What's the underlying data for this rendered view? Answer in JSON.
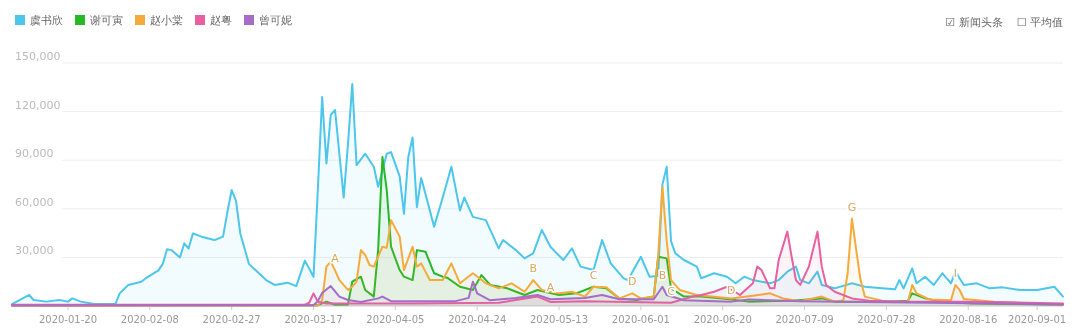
{
  "chart_data": {
    "type": "area",
    "legend": "top left",
    "grid": "y",
    "xlim": [
      "2020-01-07",
      "2020-09-07"
    ],
    "ylim": [
      0,
      150000
    ],
    "xticks": [
      "2020-01-20",
      "2020-02-08",
      "2020-02-27",
      "2020-03-17",
      "2020-04-05",
      "2020-04-24",
      "2020-05-13",
      "2020-06-01",
      "2020-06-20",
      "2020-07-09",
      "2020-07-28",
      "2020-08-16",
      "2020-09-01"
    ],
    "yticks": [
      {
        "value": 30000,
        "label": "30,000"
      },
      {
        "value": 60000,
        "label": "60,000"
      },
      {
        "value": 90000,
        "label": "90,000"
      },
      {
        "value": 120000,
        "label": "120,000"
      },
      {
        "value": 150000,
        "label": "150,000"
      }
    ],
    "series": [
      {
        "name": "虞书欣",
        "color": "#4cc6ea",
        "x": [
          "2020-01-07",
          "2020-01-11",
          "2020-01-12",
          "2020-01-15",
          "2020-01-18",
          "2020-01-20",
          "2020-01-21",
          "2020-01-23",
          "2020-01-26",
          "2020-01-31",
          "2020-02-01",
          "2020-02-03",
          "2020-02-06",
          "2020-02-07",
          "2020-02-10",
          "2020-02-11",
          "2020-02-12",
          "2020-02-13",
          "2020-02-15",
          "2020-02-16",
          "2020-02-17",
          "2020-02-18",
          "2020-02-20",
          "2020-02-23",
          "2020-02-25",
          "2020-02-26",
          "2020-02-27",
          "2020-02-28",
          "2020-02-29",
          "2020-03-02",
          "2020-03-06",
          "2020-03-08",
          "2020-03-11",
          "2020-03-13",
          "2020-03-15",
          "2020-03-17",
          "2020-03-18",
          "2020-03-19",
          "2020-03-20",
          "2020-03-21",
          "2020-03-22",
          "2020-03-24",
          "2020-03-25",
          "2020-03-26",
          "2020-03-27",
          "2020-03-29",
          "2020-03-31",
          "2020-04-01",
          "2020-04-03",
          "2020-04-04",
          "2020-04-06",
          "2020-04-07",
          "2020-04-08",
          "2020-04-09",
          "2020-04-10",
          "2020-04-11",
          "2020-04-14",
          "2020-04-16",
          "2020-04-18",
          "2020-04-20",
          "2020-04-21",
          "2020-04-23",
          "2020-04-26",
          "2020-04-29",
          "2020-04-30",
          "2020-05-03",
          "2020-05-05",
          "2020-05-07",
          "2020-05-09",
          "2020-05-11",
          "2020-05-14",
          "2020-05-16",
          "2020-05-18",
          "2020-05-21",
          "2020-05-23",
          "2020-05-25",
          "2020-05-28",
          "2020-05-29",
          "2020-06-01",
          "2020-06-03",
          "2020-06-05",
          "2020-06-06",
          "2020-06-07",
          "2020-06-08",
          "2020-06-09",
          "2020-06-11",
          "2020-06-14",
          "2020-06-15",
          "2020-06-18",
          "2020-06-21",
          "2020-06-23",
          "2020-06-25",
          "2020-06-27",
          "2020-07-01",
          "2020-07-03",
          "2020-07-05",
          "2020-07-07",
          "2020-07-08",
          "2020-07-10",
          "2020-07-12",
          "2020-07-13",
          "2020-07-16",
          "2020-07-20",
          "2020-07-23",
          "2020-07-27",
          "2020-07-30",
          "2020-07-31",
          "2020-08-01",
          "2020-08-03",
          "2020-08-04",
          "2020-08-06",
          "2020-08-08",
          "2020-08-10",
          "2020-08-12",
          "2020-08-13",
          "2020-08-15",
          "2020-08-18",
          "2020-08-21",
          "2020-08-24",
          "2020-08-28",
          "2020-09-01",
          "2020-09-05",
          "2020-09-07"
        ],
        "values": [
          1200,
          6800,
          3700,
          2700,
          3700,
          2700,
          4700,
          2700,
          1200,
          1200,
          7800,
          13000,
          15000,
          17000,
          22000,
          26000,
          35000,
          34500,
          30000,
          38700,
          35500,
          44800,
          42800,
          40700,
          42800,
          58000,
          71600,
          65000,
          44800,
          26000,
          16000,
          13000,
          14400,
          12300,
          28000,
          18000,
          71600,
          129000,
          88000,
          118000,
          121000,
          67000,
          100000,
          137000,
          87000,
          94000,
          86000,
          73600,
          94000,
          95000,
          80000,
          57000,
          92000,
          104000,
          61000,
          79000,
          49000,
          67000,
          86000,
          59000,
          67000,
          55000,
          53000,
          35600,
          40700,
          34500,
          29400,
          32500,
          46900,
          36600,
          28400,
          35600,
          24300,
          22200,
          40700,
          26300,
          17100,
          16000,
          30400,
          18100,
          18500,
          75000,
          86000,
          40000,
          32500,
          28400,
          24300,
          17100,
          20200,
          18100,
          14000,
          18100,
          16000,
          14000,
          16000,
          21200,
          24300,
          16000,
          14000,
          21200,
          13000,
          10900,
          14000,
          11900,
          10900,
          10300,
          16000,
          10900,
          23200,
          14000,
          18100,
          13000,
          20200,
          14000,
          21200,
          13000,
          14000,
          10900,
          11500,
          9900,
          9900,
          11900,
          5800
        ]
      },
      {
        "name": "谢可寅",
        "color": "#27b827",
        "x": [
          "2020-01-07",
          "2020-03-18",
          "2020-03-20",
          "2020-03-22",
          "2020-03-25",
          "2020-03-26",
          "2020-03-28",
          "2020-03-29",
          "2020-03-31",
          "2020-04-01",
          "2020-04-02",
          "2020-04-03",
          "2020-04-04",
          "2020-04-06",
          "2020-04-07",
          "2020-04-09",
          "2020-04-10",
          "2020-04-12",
          "2020-04-14",
          "2020-04-16",
          "2020-04-17",
          "2020-04-20",
          "2020-04-23",
          "2020-04-25",
          "2020-04-27",
          "2020-05-01",
          "2020-05-05",
          "2020-05-08",
          "2020-05-13",
          "2020-05-17",
          "2020-05-21",
          "2020-05-24",
          "2020-05-27",
          "2020-05-31",
          "2020-06-04",
          "2020-06-05",
          "2020-06-07",
          "2020-06-08",
          "2020-06-11",
          "2020-06-15",
          "2020-06-20",
          "2020-06-26",
          "2020-07-06",
          "2020-07-13",
          "2020-07-16",
          "2020-07-28",
          "2020-08-02",
          "2020-08-03",
          "2020-08-06",
          "2020-08-10",
          "2020-08-17",
          "2020-08-27",
          "2020-09-07"
        ],
        "values": [
          500,
          500,
          2700,
          800,
          1000,
          15000,
          18100,
          9900,
          5800,
          34500,
          92000,
          71600,
          36600,
          22200,
          18100,
          16000,
          34500,
          33500,
          20200,
          18100,
          17500,
          11900,
          9900,
          19100,
          13000,
          10900,
          6800,
          9900,
          6800,
          7800,
          11900,
          10900,
          4700,
          3700,
          5800,
          30400,
          29400,
          10900,
          5800,
          5800,
          4700,
          2700,
          3300,
          4700,
          2700,
          2700,
          3300,
          7800,
          4700,
          2700,
          1600,
          1200,
          700
        ]
      },
      {
        "name": "赵小棠",
        "color": "#f5aa3c",
        "x": [
          "2020-01-07",
          "2020-03-18",
          "2020-03-19",
          "2020-03-20",
          "2020-03-21",
          "2020-03-22",
          "2020-03-23",
          "2020-03-25",
          "2020-03-26",
          "2020-03-27",
          "2020-03-28",
          "2020-03-29",
          "2020-03-30",
          "2020-03-31",
          "2020-04-02",
          "2020-04-03",
          "2020-04-04",
          "2020-04-06",
          "2020-04-07",
          "2020-04-09",
          "2020-04-10",
          "2020-04-11",
          "2020-04-13",
          "2020-04-16",
          "2020-04-18",
          "2020-04-20",
          "2020-04-23",
          "2020-04-26",
          "2020-04-29",
          "2020-05-02",
          "2020-05-05",
          "2020-05-07",
          "2020-05-09",
          "2020-05-13",
          "2020-05-16",
          "2020-05-19",
          "2020-05-21",
          "2020-05-24",
          "2020-05-27",
          "2020-05-30",
          "2020-06-01",
          "2020-06-04",
          "2020-06-05",
          "2020-06-06",
          "2020-06-07",
          "2020-06-08",
          "2020-06-10",
          "2020-06-14",
          "2020-06-22",
          "2020-07-01",
          "2020-07-04",
          "2020-07-08",
          "2020-07-13",
          "2020-07-16",
          "2020-07-18",
          "2020-07-19",
          "2020-07-20",
          "2020-07-21",
          "2020-07-22",
          "2020-07-23",
          "2020-07-28",
          "2020-08-02",
          "2020-08-03",
          "2020-08-04",
          "2020-08-07",
          "2020-08-12",
          "2020-08-13",
          "2020-08-14",
          "2020-08-15",
          "2020-08-22",
          "2020-09-07"
        ],
        "values": [
          200,
          300,
          3700,
          24300,
          27400,
          22000,
          16000,
          9900,
          12000,
          15000,
          34500,
          31500,
          25300,
          24300,
          36600,
          36000,
          53000,
          42800,
          22200,
          36600,
          24300,
          26300,
          16000,
          16000,
          26300,
          14000,
          20200,
          14000,
          10900,
          14000,
          8800,
          16000,
          9900,
          7800,
          8800,
          5800,
          11900,
          11500,
          4700,
          7800,
          4700,
          5800,
          30400,
          73600,
          40000,
          16000,
          9900,
          6800,
          4700,
          7800,
          4700,
          3000,
          5800,
          2700,
          3500,
          20200,
          54000,
          34500,
          16000,
          5800,
          2700,
          2700,
          13000,
          7800,
          4000,
          3500,
          13000,
          9900,
          4300,
          2700,
          700
        ]
      },
      {
        "name": "赵粤",
        "color": "#e8609f",
        "x": [
          "2020-01-07",
          "2020-03-15",
          "2020-03-16",
          "2020-03-17",
          "2020-03-18",
          "2020-03-20",
          "2020-04-09",
          "2020-04-29",
          "2020-05-08",
          "2020-05-11",
          "2020-05-19",
          "2020-05-29",
          "2020-06-08",
          "2020-06-13",
          "2020-06-15",
          "2020-06-18",
          "2020-06-21",
          "2020-06-24",
          "2020-06-27",
          "2020-06-28",
          "2020-06-29",
          "2020-07-01",
          "2020-07-02",
          "2020-07-03",
          "2020-07-05",
          "2020-07-06",
          "2020-07-07",
          "2020-07-08",
          "2020-07-10",
          "2020-07-12",
          "2020-07-13",
          "2020-07-14",
          "2020-07-16",
          "2020-07-20",
          "2020-07-24",
          "2020-08-02",
          "2020-08-17",
          "2020-09-07"
        ],
        "values": [
          800,
          800,
          2000,
          7800,
          2700,
          1500,
          1500,
          2000,
          5800,
          2500,
          3000,
          2500,
          2000,
          5800,
          6800,
          8800,
          11900,
          6800,
          14000,
          24300,
          22200,
          10900,
          10900,
          28400,
          45900,
          30400,
          16000,
          13000,
          24300,
          45900,
          24300,
          13000,
          8800,
          4700,
          3300,
          2700,
          2700,
          1600
        ]
      },
      {
        "name": "曾可妮",
        "color": "#a56cc8",
        "x": [
          "2020-01-07",
          "2020-03-17",
          "2020-03-18",
          "2020-03-19",
          "2020-03-21",
          "2020-03-23",
          "2020-03-25",
          "2020-03-28",
          "2020-04-01",
          "2020-04-02",
          "2020-04-04",
          "2020-04-19",
          "2020-04-22",
          "2020-04-23",
          "2020-04-24",
          "2020-04-27",
          "2020-05-03",
          "2020-05-08",
          "2020-05-11",
          "2020-05-19",
          "2020-05-23",
          "2020-05-27",
          "2020-06-04",
          "2020-06-06",
          "2020-06-07",
          "2020-06-11",
          "2020-06-22",
          "2020-06-26",
          "2020-07-08",
          "2020-08-07",
          "2020-09-07"
        ],
        "values": [
          300,
          500,
          3000,
          8000,
          12300,
          5800,
          3700,
          2500,
          4700,
          5800,
          3000,
          3000,
          5000,
          15000,
          7800,
          3500,
          5000,
          6800,
          4200,
          5000,
          6800,
          4200,
          4200,
          11900,
          6800,
          3500,
          2700,
          4000,
          3000,
          2000,
          1000
        ]
      }
    ],
    "annotations": [
      "☑ 新闻头条",
      "☐ 平均值",
      {
        "text": "A",
        "x": "2020-03-22",
        "y": 22000
      },
      {
        "text": "B",
        "x": "2020-05-07",
        "y": 16000
      },
      {
        "text": "A",
        "x": "2020-05-11",
        "y": 4200
      },
      {
        "text": "C",
        "x": "2020-05-21",
        "y": 11900
      },
      {
        "text": "D",
        "x": "2020-05-30",
        "y": 7800
      },
      {
        "text": "B",
        "x": "2020-06-06",
        "y": 11900
      },
      {
        "text": "C",
        "x": "2020-06-08",
        "y": 2000
      },
      {
        "text": "D",
        "x": "2020-06-22",
        "y": 2700
      },
      {
        "text": "G",
        "x": "2020-07-20",
        "y": 54000
      },
      {
        "text": "I",
        "x": "2020-08-13",
        "y": 13000
      }
    ]
  }
}
